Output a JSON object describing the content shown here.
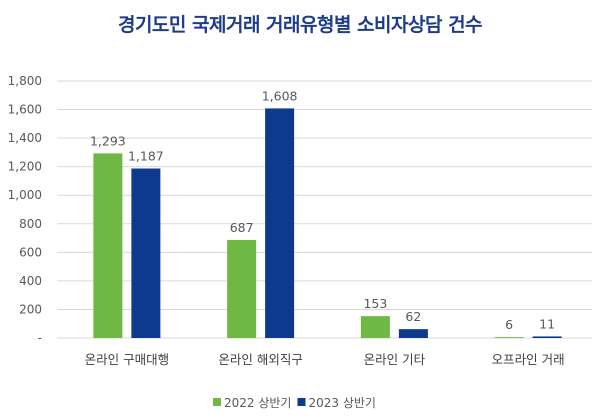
{
  "chart_data": {
    "type": "bar",
    "title": "경기도민 국제거래 거래유형별 소비자상담 건수",
    "categories": [
      "온라인 구매대행",
      "온라인 해외직구",
      "온라인 기타",
      "오프라인 거래"
    ],
    "series": [
      {
        "name": "2022 상반기",
        "values": [
          1293,
          687,
          153,
          6
        ],
        "labels": [
          "1,293",
          "687",
          "153",
          "6"
        ],
        "color": "#70b844"
      },
      {
        "name": "2023 상반기",
        "values": [
          1187,
          1608,
          62,
          11
        ],
        "labels": [
          "1,187",
          "1,608",
          "62",
          "11"
        ],
        "color": "#0d3a8f"
      }
    ],
    "yticks": [
      0,
      200,
      400,
      600,
      800,
      1000,
      1200,
      1400,
      1600,
      1800
    ],
    "ytick_labels": [
      "-",
      "200",
      "400",
      "600",
      "800",
      "1,000",
      "1,200",
      "1,400",
      "1,600",
      "1,800"
    ],
    "ylim": [
      0,
      1800
    ],
    "xlabel": "",
    "ylabel": "",
    "grid": true,
    "legend": "bottom-center",
    "title_color": "#1f3c88"
  }
}
